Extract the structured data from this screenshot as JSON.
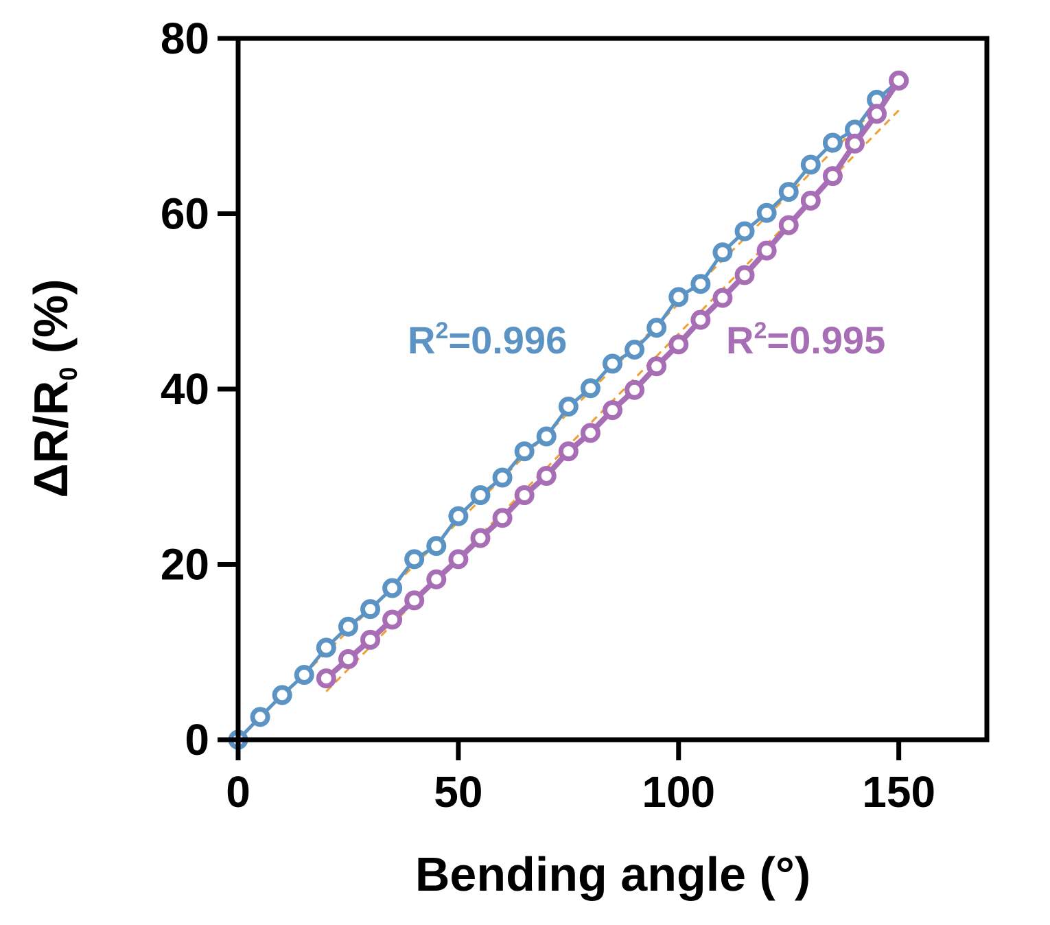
{
  "chart_data": {
    "type": "line",
    "xlabel": "Bending angle (°)",
    "ylabel": {
      "main": "ΔR/R",
      "sub": "0",
      "tail": " (%)"
    },
    "xlim": [
      0,
      170
    ],
    "ylim": [
      0,
      80
    ],
    "x_ticks": [
      0,
      50,
      100,
      150
    ],
    "y_ticks": [
      0,
      20,
      40,
      60,
      80
    ],
    "grid": false,
    "colors": {
      "series1": "#5b93c4",
      "series2": "#a76db5",
      "fit": "#f0a030"
    },
    "series": [
      {
        "x": [
          0,
          5,
          10,
          15,
          20,
          25,
          30,
          35,
          40,
          45,
          50,
          55,
          60,
          65,
          70,
          75,
          80,
          85,
          90,
          95,
          100,
          105,
          110,
          115,
          120,
          125,
          130,
          135,
          140,
          145,
          150
        ],
        "values": [
          0,
          2.6,
          5.1,
          7.4,
          10.5,
          12.9,
          14.9,
          17.3,
          20.6,
          22.1,
          25.5,
          27.9,
          29.9,
          32.9,
          34.6,
          38.0,
          40.1,
          42.9,
          44.5,
          47.0,
          50.5,
          52.0,
          55.6,
          58.0,
          60.1,
          62.5,
          65.6,
          68.1,
          69.6,
          73.0,
          75.2
        ],
        "fit": {
          "x": [
            0,
            150
          ],
          "y": [
            0,
            74.6
          ]
        },
        "r2_label": {
          "main": "R",
          "sup": "2",
          "tail": "=0.996"
        }
      },
      {
        "x": [
          20,
          25,
          30,
          35,
          40,
          45,
          50,
          55,
          60,
          65,
          70,
          75,
          80,
          85,
          90,
          95,
          100,
          105,
          110,
          115,
          120,
          125,
          130,
          135,
          140,
          145,
          150
        ],
        "values": [
          7.0,
          9.2,
          11.4,
          13.7,
          15.9,
          18.3,
          20.6,
          23.0,
          25.3,
          27.9,
          30.1,
          32.9,
          35.0,
          37.6,
          39.9,
          42.6,
          45.1,
          47.9,
          50.4,
          53.0,
          55.8,
          58.7,
          61.5,
          64.3,
          68.0,
          71.4,
          75.2
        ],
        "fit": {
          "x": [
            20,
            150
          ],
          "y": [
            5.5,
            71.8
          ]
        },
        "r2_label": {
          "main": "R",
          "sup": "2",
          "tail": "=0.995"
        }
      }
    ]
  }
}
